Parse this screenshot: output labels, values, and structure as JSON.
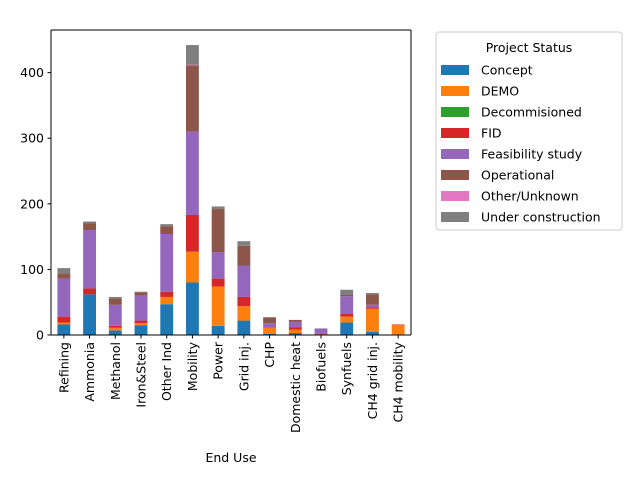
{
  "chart_data": {
    "type": "bar",
    "stacked": true,
    "xlabel": "End Use",
    "ylabel": "",
    "ylim": [
      0,
      465
    ],
    "yticks": [
      0,
      100,
      200,
      300,
      400
    ],
    "grid": false,
    "legend": {
      "title": "Project Status",
      "placement": "outside right"
    },
    "categories": [
      "Refining",
      "Ammonia",
      "Methanol",
      "Iron&Steel",
      "Other Ind",
      "Mobility",
      "Power",
      "Grid inj.",
      "CHP",
      "Domestic heat",
      "Biofuels",
      "Synfuels",
      "CH4 grid inj.",
      "CH4 mobility"
    ],
    "series": [
      {
        "name": "Concept",
        "color": "#1f77b4",
        "values": [
          16,
          62,
          7,
          15,
          47,
          80,
          14,
          22,
          2,
          3,
          0,
          19,
          5,
          1
        ]
      },
      {
        "name": "DEMO",
        "color": "#ff7f0e",
        "values": [
          3,
          0,
          4,
          3,
          11,
          47,
          60,
          22,
          9,
          5,
          1,
          9,
          35,
          14
        ]
      },
      {
        "name": "Decommisioned",
        "color": "#2ca02c",
        "values": [
          0,
          0,
          0,
          0,
          0,
          0,
          0,
          0,
          0,
          0,
          0,
          0,
          0,
          0
        ]
      },
      {
        "name": "FID",
        "color": "#d62728",
        "values": [
          9,
          9,
          3,
          4,
          8,
          56,
          12,
          14,
          1,
          4,
          1,
          4,
          2,
          1
        ]
      },
      {
        "name": "Feasibility study",
        "color": "#9467bd",
        "values": [
          58,
          89,
          32,
          38,
          88,
          127,
          40,
          48,
          6,
          8,
          8,
          27,
          4,
          0
        ]
      },
      {
        "name": "Operational",
        "color": "#8c564b",
        "values": [
          8,
          10,
          10,
          5,
          12,
          101,
          66,
          30,
          9,
          3,
          0,
          2,
          16,
          0
        ]
      },
      {
        "name": "Other/Unknown",
        "color": "#e377c2",
        "values": [
          0,
          0,
          0,
          0,
          0,
          1,
          0,
          0,
          0,
          0,
          0,
          0,
          0,
          0
        ]
      },
      {
        "name": "Under construction",
        "color": "#7f7f7f",
        "values": [
          8,
          3,
          2,
          1,
          3,
          30,
          4,
          7,
          0,
          0,
          0,
          8,
          2,
          0
        ]
      }
    ]
  }
}
